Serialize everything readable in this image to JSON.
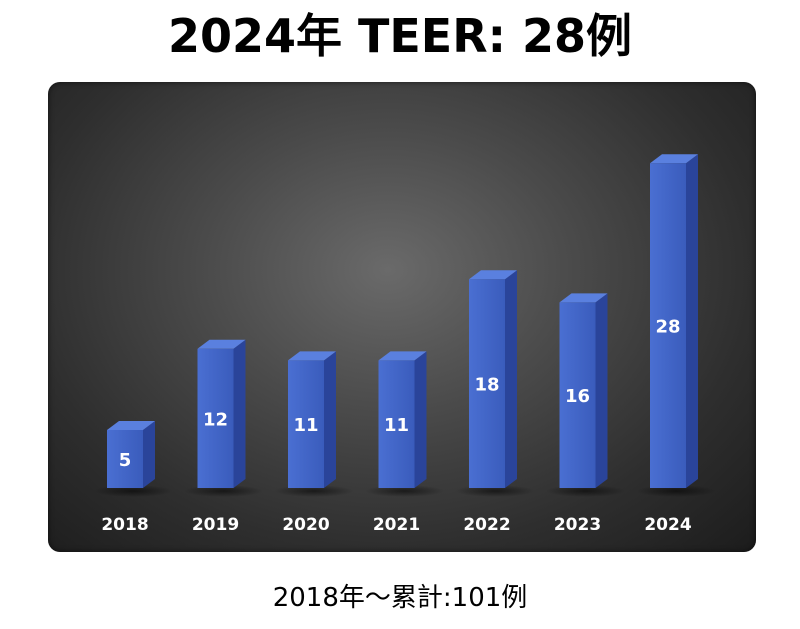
{
  "title": "2024年 TEER: 28例",
  "footer": "2018年～累計:101例",
  "colors": {
    "bar_front": "#3f63c6",
    "bar_side": "#2a449a",
    "bar_top": "#5a80df",
    "label_text": "#ffffff"
  },
  "chart_data": {
    "type": "bar",
    "title": "2024年 TEER: 28例",
    "categories": [
      "2018",
      "2019",
      "2020",
      "2021",
      "2022",
      "2023",
      "2024"
    ],
    "values": [
      5,
      12,
      11,
      11,
      18,
      16,
      28
    ],
    "data_labels": [
      "5",
      "12",
      "11",
      "11",
      "18",
      "16",
      "28"
    ],
    "xlabel": "",
    "ylabel": "",
    "ylim": [
      0,
      30
    ],
    "grid": false,
    "legend": "none",
    "style": "3d-column"
  }
}
